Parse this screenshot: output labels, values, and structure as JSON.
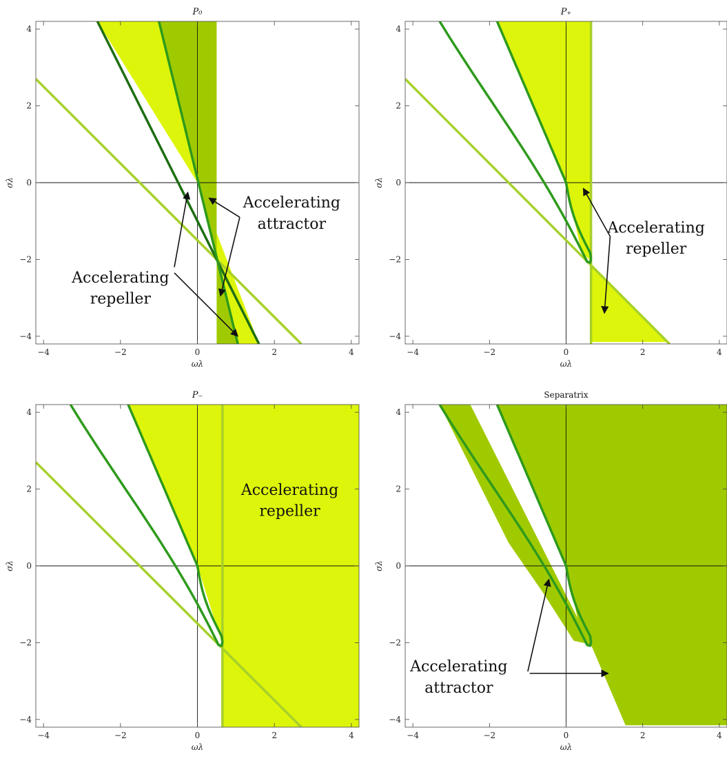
{
  "colors": {
    "yellow": "#DDF50A",
    "mid_green": "#A0CA00",
    "line_light": "#A8D02A",
    "curve_green": "#2E9A1C",
    "curve_dark": "#1F6E14",
    "axis": "#111111"
  },
  "chart_data": [
    {
      "type": "region-plot",
      "title": "P₀",
      "xlabel": "ωλ",
      "ylabel": "σλ",
      "xlim": [
        -4.2,
        4.2
      ],
      "ylim": [
        -4.2,
        4.2
      ],
      "xticks": [
        -4,
        -2,
        0,
        2,
        4
      ],
      "yticks": [
        -4,
        -2,
        0,
        2,
        4
      ],
      "regions": [
        {
          "name": "Accelerating repeller",
          "color": "yellow",
          "polygon": [
            [
              -2.6,
              4.2
            ],
            [
              -1.0,
              4.2
            ],
            [
              0,
              0
            ],
            [
              0.5,
              -2
            ],
            [
              1.05,
              -4.2
            ],
            [
              1.6,
              -4.2
            ],
            [
              0,
              0
            ]
          ]
        },
        {
          "name": "Accelerating attractor",
          "color": "mid_green",
          "polygon": [
            [
              -1.0,
              4.2
            ],
            [
              0.5,
              4.2
            ],
            [
              0.5,
              -4.2
            ],
            [
              1.05,
              -4.2
            ],
            [
              0,
              0
            ]
          ]
        }
      ],
      "lines": [
        {
          "points": [
            [
              -4.2,
              2.7
            ],
            [
              2.7,
              -4.2
            ]
          ],
          "color": "line_light"
        },
        {
          "points": [
            [
              -2.6,
              4.2
            ],
            [
              1.6,
              -4.2
            ]
          ],
          "color": "curve_dark"
        },
        {
          "points": [
            [
              -1.0,
              4.2
            ],
            [
              1.05,
              -4.2
            ]
          ],
          "color": "curve_green"
        }
      ],
      "annotations": [
        {
          "text": "Accelerating",
          "x": 2.45,
          "y": -0.65
        },
        {
          "text": "attractor",
          "x": 2.45,
          "y": -1.2
        },
        {
          "text": "Accelerating",
          "x": -2.0,
          "y": -2.6
        },
        {
          "text": "repeller",
          "x": -2.0,
          "y": -3.15
        }
      ],
      "arrows": [
        {
          "from": [
            -0.6,
            -2.2
          ],
          "to": [
            -0.25,
            -0.25
          ]
        },
        {
          "from": [
            -0.6,
            -2.35
          ],
          "to": [
            1.05,
            -4.0
          ]
        },
        {
          "from": [
            1.1,
            -0.9
          ],
          "to": [
            0.3,
            -0.4
          ]
        },
        {
          "from": [
            1.1,
            -0.9
          ],
          "to": [
            0.6,
            -2.95
          ]
        }
      ]
    },
    {
      "type": "region-plot",
      "title": "P₊",
      "xlabel": "ωλ",
      "ylabel": "σλ",
      "xlim": [
        -4.2,
        4.2
      ],
      "ylim": [
        -4.2,
        4.2
      ],
      "xticks": [
        -4,
        -2,
        0,
        2,
        4
      ],
      "yticks": [
        -4,
        -2,
        0,
        2,
        4
      ],
      "regions": [
        {
          "name": "Accelerating repeller",
          "color": "yellow",
          "polygon": [
            [
              -1.8,
              4.2
            ],
            [
              0.65,
              4.2
            ],
            [
              0.65,
              -2.05
            ],
            [
              0.4,
              -1.8
            ],
            [
              0,
              0
            ]
          ]
        },
        {
          "name": "Accelerating repeller",
          "color": "yellow",
          "polygon": [
            [
              0.65,
              -2.15
            ],
            [
              2.65,
              -4.15
            ],
            [
              0.65,
              -4.15
            ]
          ]
        }
      ],
      "lines": [
        {
          "points": [
            [
              -4.2,
              2.7
            ],
            [
              2.7,
              -4.2
            ]
          ],
          "color": "line_light"
        },
        {
          "points": [
            [
              0.65,
              4.2
            ],
            [
              0.65,
              -4.2
            ]
          ],
          "color": "line_light"
        }
      ],
      "loop": {
        "color": "curve_green"
      },
      "annotations": [
        {
          "text": "Accelerating",
          "x": 2.35,
          "y": -1.3
        },
        {
          "text": "repeller",
          "x": 2.35,
          "y": -1.85
        }
      ],
      "arrows": [
        {
          "from": [
            1.15,
            -1.4
          ],
          "to": [
            0.45,
            -0.15
          ]
        },
        {
          "from": [
            1.15,
            -1.4
          ],
          "to": [
            1.0,
            -3.4
          ]
        }
      ]
    },
    {
      "type": "region-plot",
      "title": "P₋",
      "xlabel": "ωλ",
      "ylabel": "σλ",
      "xlim": [
        -4.2,
        4.2
      ],
      "ylim": [
        -4.2,
        4.2
      ],
      "xticks": [
        -4,
        -2,
        0,
        2,
        4
      ],
      "yticks": [
        -4,
        -2,
        0,
        2,
        4
      ],
      "regions": [
        {
          "name": "Accelerating repeller",
          "color": "yellow",
          "polygon": [
            [
              -1.8,
              4.2
            ],
            [
              4.2,
              4.2
            ],
            [
              4.2,
              -4.2
            ],
            [
              0.65,
              -4.2
            ],
            [
              0.65,
              -2.05
            ],
            [
              0,
              0
            ]
          ]
        }
      ],
      "lines": [
        {
          "points": [
            [
              -4.2,
              2.7
            ],
            [
              2.7,
              -4.2
            ]
          ],
          "color": "line_light"
        },
        {
          "points": [
            [
              0.65,
              4.2
            ],
            [
              0.65,
              -4.2
            ]
          ],
          "color": "line_light"
        }
      ],
      "loop": {
        "color": "curve_green"
      },
      "annotations": [
        {
          "text": "Accelerating",
          "x": 2.4,
          "y": 1.85
        },
        {
          "text": "repeller",
          "x": 2.4,
          "y": 1.3
        }
      ],
      "arrows": []
    },
    {
      "type": "region-plot",
      "title": "Separatrix",
      "xlabel": "ωλ",
      "ylabel": "σλ",
      "xlim": [
        -4.2,
        4.2
      ],
      "ylim": [
        -4.2,
        4.2
      ],
      "xticks": [
        -4,
        -2,
        0,
        2,
        4
      ],
      "yticks": [
        -4,
        -2,
        0,
        2,
        4
      ],
      "regions": [
        {
          "name": "Accelerating attractor",
          "color": "mid_green",
          "polygon": [
            [
              -1.8,
              4.2
            ],
            [
              4.2,
              4.2
            ],
            [
              4.2,
              -4.15
            ],
            [
              1.55,
              -4.15
            ],
            [
              0.65,
              -2.05
            ],
            [
              0.4,
              -1.8
            ],
            [
              0,
              0
            ]
          ]
        },
        {
          "name": "Accelerating attractor",
          "color": "mid_green",
          "polygon": [
            [
              -3.3,
              4.2
            ],
            [
              -2.5,
              4.2
            ],
            [
              0.65,
              -2.05
            ],
            [
              0.2,
              -1.95
            ],
            [
              -0.6,
              -0.7
            ],
            [
              -1.5,
              0.6
            ]
          ]
        }
      ],
      "lines": [],
      "loop": {
        "color": "curve_green"
      },
      "annotations": [
        {
          "text": "Accelerating",
          "x": -2.8,
          "y": -2.75
        },
        {
          "text": "attractor",
          "x": -2.8,
          "y": -3.3
        }
      ],
      "arrows": [
        {
          "from": [
            -1.0,
            -2.75
          ],
          "to": [
            -0.45,
            -0.35
          ]
        },
        {
          "from": [
            -0.95,
            -2.8
          ],
          "to": [
            1.1,
            -2.8
          ]
        }
      ]
    }
  ]
}
